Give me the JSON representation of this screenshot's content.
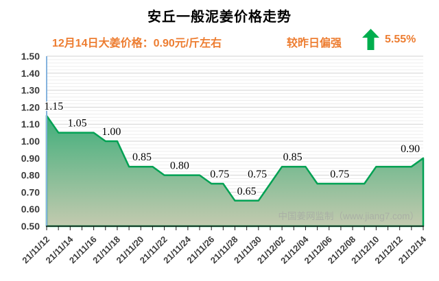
{
  "header": {
    "price_line": "12月14日大姜价格：0.90元/斤左右",
    "trend_label": "较昨日偏强",
    "trend_icon": "up-arrow",
    "change_percent": "5.55%"
  },
  "watermark": "中国姜网监制（www.jiang7.com）",
  "colors": {
    "accent_orange": "#ED7D31",
    "arrow_green": "#00AE4E",
    "line_green": "#00A153",
    "area_top": "#3FAE7A",
    "area_bottom": "#C3CAAF",
    "axis_blue": "#85B3DE",
    "axis_black": "#1A1A1A",
    "grid_major": "#D2D2D2",
    "grid_minor": "#EDEDED",
    "tick_text": "#3B3B3B",
    "data_label": "#000000",
    "watermark_gray": "#A9B0A5"
  },
  "chart_data": {
    "type": "area",
    "title": "安丘一般泥姜价格走势",
    "xlabel": "",
    "ylabel": "",
    "unit": "元/斤",
    "ylim": [
      0.5,
      1.5
    ],
    "y_tick_step": 0.1,
    "y_minor_step": 0.02,
    "grid": "horizontal major+minor",
    "legend": "none",
    "y_ticks": [
      "0.50",
      "0.60",
      "0.70",
      "0.80",
      "0.90",
      "1.00",
      "1.10",
      "1.20",
      "1.30",
      "1.40",
      "1.50"
    ],
    "x_tick_labels": [
      "21/11/12",
      "21/11/14",
      "21/11/16",
      "21/11/18",
      "21/11/20",
      "21/11/22",
      "21/11/24",
      "21/11/26",
      "21/11/28",
      "21/11/30",
      "21/12/02",
      "21/12/04",
      "21/12/06",
      "21/12/08",
      "21/12/10",
      "21/12/12",
      "21/12/14"
    ],
    "dates": [
      "21/11/12",
      "21/11/13",
      "21/11/14",
      "21/11/15",
      "21/11/16",
      "21/11/17",
      "21/11/18",
      "21/11/19",
      "21/11/20",
      "21/11/21",
      "21/11/22",
      "21/11/23",
      "21/11/24",
      "21/11/25",
      "21/11/26",
      "21/11/27",
      "21/11/28",
      "21/11/29",
      "21/11/30",
      "21/12/01",
      "21/12/02",
      "21/12/03",
      "21/12/04",
      "21/12/05",
      "21/12/06",
      "21/12/07",
      "21/12/08",
      "21/12/09",
      "21/12/10",
      "21/12/11",
      "21/12/12",
      "21/12/13",
      "21/12/14"
    ],
    "values": [
      1.15,
      1.05,
      1.05,
      1.05,
      1.05,
      1.0,
      1.0,
      0.85,
      0.85,
      0.85,
      0.8,
      0.8,
      0.8,
      0.8,
      0.75,
      0.75,
      0.65,
      0.65,
      0.65,
      0.75,
      0.85,
      0.85,
      0.85,
      0.75,
      0.75,
      0.75,
      0.75,
      0.75,
      0.85,
      0.85,
      0.85,
      0.85,
      0.9
    ],
    "point_labels": [
      {
        "day": 0.6,
        "text": "1.15"
      },
      {
        "day": 2.6,
        "text": "1.05"
      },
      {
        "day": 5.5,
        "text": "1.00"
      },
      {
        "day": 8.1,
        "text": "0.85"
      },
      {
        "day": 11.3,
        "text": "0.80"
      },
      {
        "day": 14.7,
        "text": "0.75"
      },
      {
        "day": 17.0,
        "text": "0.65"
      },
      {
        "day": 17.9,
        "text": "0.75"
      },
      {
        "day": 20.9,
        "text": "0.85"
      },
      {
        "day": 24.9,
        "text": "0.75"
      },
      {
        "day": 30.9,
        "text": "0.90"
      }
    ]
  }
}
